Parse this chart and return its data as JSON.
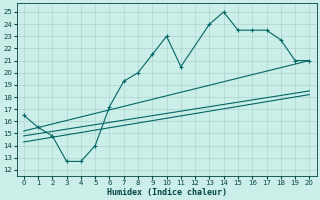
{
  "xlabel": "Humidex (Indice chaleur)",
  "bg_color": "#cceee8",
  "line_color": "#006666",
  "xlim": [
    -0.5,
    20.5
  ],
  "ylim": [
    11.5,
    25.7
  ],
  "xticks": [
    0,
    1,
    2,
    3,
    4,
    5,
    6,
    7,
    8,
    9,
    10,
    11,
    12,
    13,
    14,
    15,
    16,
    17,
    18,
    19,
    20
  ],
  "yticks": [
    12,
    13,
    14,
    15,
    16,
    17,
    18,
    19,
    20,
    21,
    22,
    23,
    24,
    25
  ],
  "curve1_x": [
    0,
    1,
    2,
    3,
    4,
    5,
    6,
    7,
    8,
    9,
    10,
    11,
    13,
    14,
    15,
    16,
    17,
    18,
    19,
    20
  ],
  "curve1_y": [
    16.5,
    15.5,
    14.8,
    12.7,
    12.7,
    14.0,
    17.2,
    19.3,
    20.0,
    21.5,
    23.0,
    20.5,
    24.0,
    25.0,
    23.5,
    23.5,
    23.5,
    22.7,
    21.0,
    21.0
  ],
  "curve2_x": [
    0,
    20
  ],
  "curve2_y": [
    15.2,
    21.0
  ],
  "curve3_x": [
    0,
    20
  ],
  "curve3_y": [
    14.8,
    18.5
  ],
  "curve4_x": [
    0,
    20
  ],
  "curve4_y": [
    14.3,
    18.2
  ]
}
